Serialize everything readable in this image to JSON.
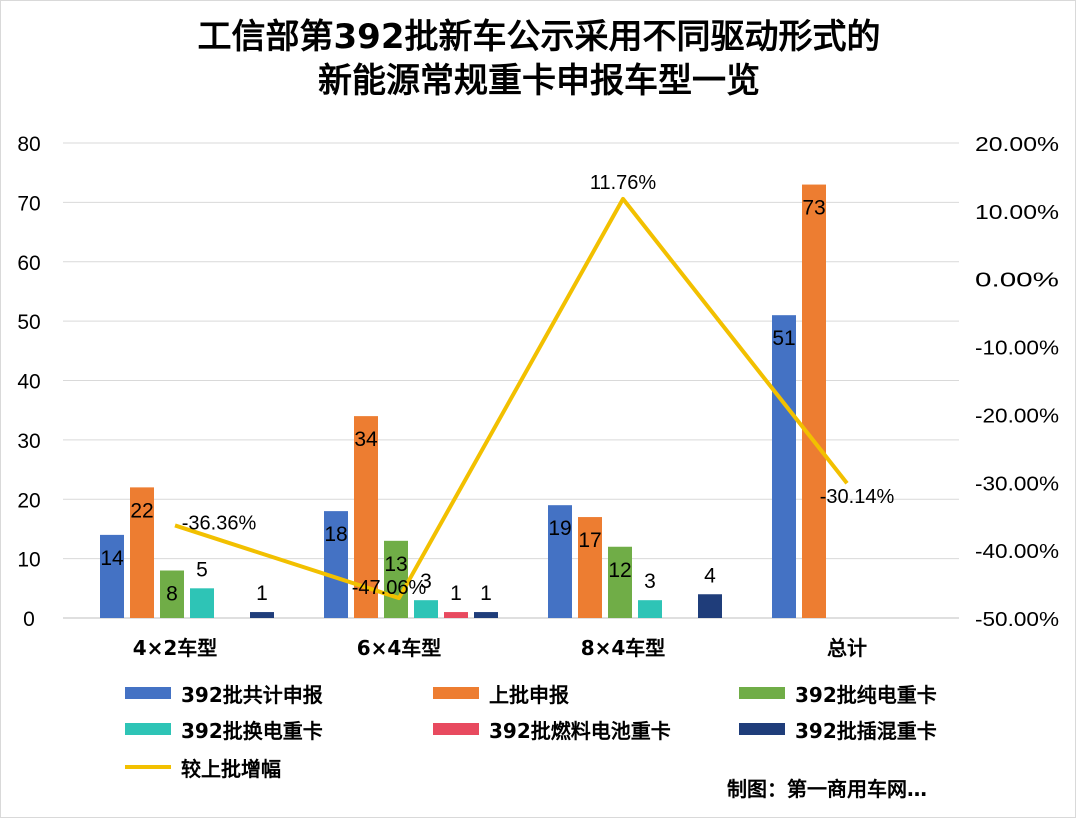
{
  "title_lines": [
    "工信部第392批新车公示采用不同驱动形式的",
    "新能源常规重卡申报车型一览"
  ],
  "credit": "制图：第一商用车网…",
  "chart_data": {
    "type": "bar",
    "categories": [
      "4×2车型",
      "6×4车型",
      "8×4车型",
      "总计"
    ],
    "series": [
      {
        "name": "392批共计申报",
        "color": "#4472c4",
        "values": [
          14,
          18,
          19,
          51
        ]
      },
      {
        "name": "上批申报",
        "color": "#ed7d31",
        "values": [
          22,
          34,
          17,
          73
        ]
      },
      {
        "name": "392批纯电重卡",
        "color": "#70ad47",
        "values": [
          8,
          13,
          12,
          null
        ]
      },
      {
        "name": "392批换电重卡",
        "color": "#2ec4b6",
        "values": [
          5,
          3,
          3,
          null
        ]
      },
      {
        "name": "392批燃料电池重卡",
        "color": "#e84a5f",
        "values": [
          null,
          1,
          null,
          null
        ]
      },
      {
        "name": "392批插混重卡",
        "color": "#1f3d7a",
        "values": [
          1,
          1,
          4,
          null
        ]
      }
    ],
    "line_series": {
      "name": "较上批增幅",
      "color": "#f2c000",
      "axis": "right",
      "values": [
        -36.36,
        -47.06,
        11.76,
        -30.14
      ],
      "labels": [
        "-36.36%",
        "-47.06%",
        "11.76%",
        "-30.14%"
      ]
    },
    "left_axis": {
      "ylim": [
        0,
        80
      ],
      "ticks": [
        "0",
        "10",
        "20",
        "30",
        "40",
        "50",
        "60",
        "70",
        "80"
      ]
    },
    "right_axis": {
      "ylim": [
        -50,
        20
      ],
      "ticks": [
        "-50.00%",
        "-40.00%",
        "-30.00%",
        "-20.00%",
        "-10.00%",
        "0.00%",
        "10.00%",
        "20.00%"
      ]
    },
    "grid": true,
    "legend_position": "bottom"
  }
}
